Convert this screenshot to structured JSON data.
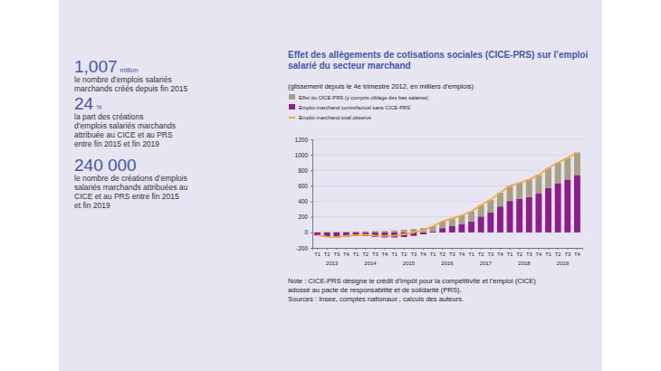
{
  "key_figures": [
    {
      "value": "1,007",
      "unit": "million",
      "text": [
        "le nombre d’emplois salariés",
        "marchands créés depuis fin 2015"
      ]
    },
    {
      "value": "24",
      "unit": "%",
      "text": [
        "la part des créations",
        "d’emplois salariés marchands",
        "attribuée au CICE et au PRS",
        "entre fin 2015 et fin 2019"
      ]
    },
    {
      "value": "240 000",
      "text": [
        "le nombre de créations d’emplois",
        "salariés marchands attribuées au",
        "CICE et au PRS entre fin 2015",
        "et fin 2019"
      ]
    }
  ],
  "chart_data": {
    "type": "bar",
    "stacked": true,
    "title": "Effet des allègements de cotisations sociales (CICE-PRS) sur l’emploi salarié du secteur marchand",
    "subtitle": "(glissement depuis le 4e trimestre 2012, en milliers d’emplois)",
    "categories": [
      "T1",
      "T2",
      "T3",
      "T4",
      "T1",
      "T2",
      "T3",
      "T4",
      "T1",
      "T2",
      "T3",
      "T4",
      "T1",
      "T2",
      "T3",
      "T4",
      "T1",
      "T2",
      "T3",
      "T4",
      "T1",
      "T2",
      "T3",
      "T4",
      "T1",
      "T2",
      "T3",
      "T4"
    ],
    "year_labels": [
      "2013",
      "2014",
      "2015",
      "2016",
      "2017",
      "2018",
      "2019"
    ],
    "series": [
      {
        "name": "Effet du CICE-PRS (y compris ciblage des bas salaires)",
        "color": "#a99f85",
        "values": [
          3,
          5,
          8,
          10,
          12,
          15,
          18,
          20,
          25,
          35,
          45,
          55,
          70,
          85,
          100,
          115,
          130,
          145,
          160,
          175,
          195,
          210,
          225,
          240,
          255,
          265,
          278,
          290
        ]
      },
      {
        "name": "Emploi marchand contrefactuel sans CICE-PRS",
        "color": "#8c1d8b",
        "values": [
          -38,
          -60,
          -68,
          -55,
          -47,
          -45,
          -58,
          -65,
          -65,
          -60,
          -45,
          -25,
          10,
          55,
          80,
          105,
          140,
          205,
          260,
          335,
          405,
          430,
          455,
          500,
          575,
          635,
          682,
          740
        ]
      },
      {
        "name": "Emploi marchand total observé",
        "type": "line",
        "color": "#f2a93b",
        "values": [
          -35,
          -55,
          -60,
          -45,
          -35,
          -30,
          -40,
          -45,
          -40,
          -25,
          0,
          30,
          80,
          140,
          180,
          220,
          270,
          350,
          420,
          510,
          600,
          640,
          680,
          740,
          830,
          900,
          960,
          1030
        ]
      }
    ],
    "ylim": [
      -200,
      1200
    ],
    "yticks": [
      -200,
      0,
      200,
      400,
      600,
      800,
      1000,
      1200
    ],
    "grid": true,
    "legend": "top-left",
    "note": [
      "Note : CICE-PRS désigne le crédit d’impôt pour la compétitivité et l’emploi (CICE)",
      "adossé au pacte de responsabilité et de solidarité (PRS)."
    ],
    "source": "Sources : Insee, comptes nationaux ; calculs des auteurs."
  }
}
